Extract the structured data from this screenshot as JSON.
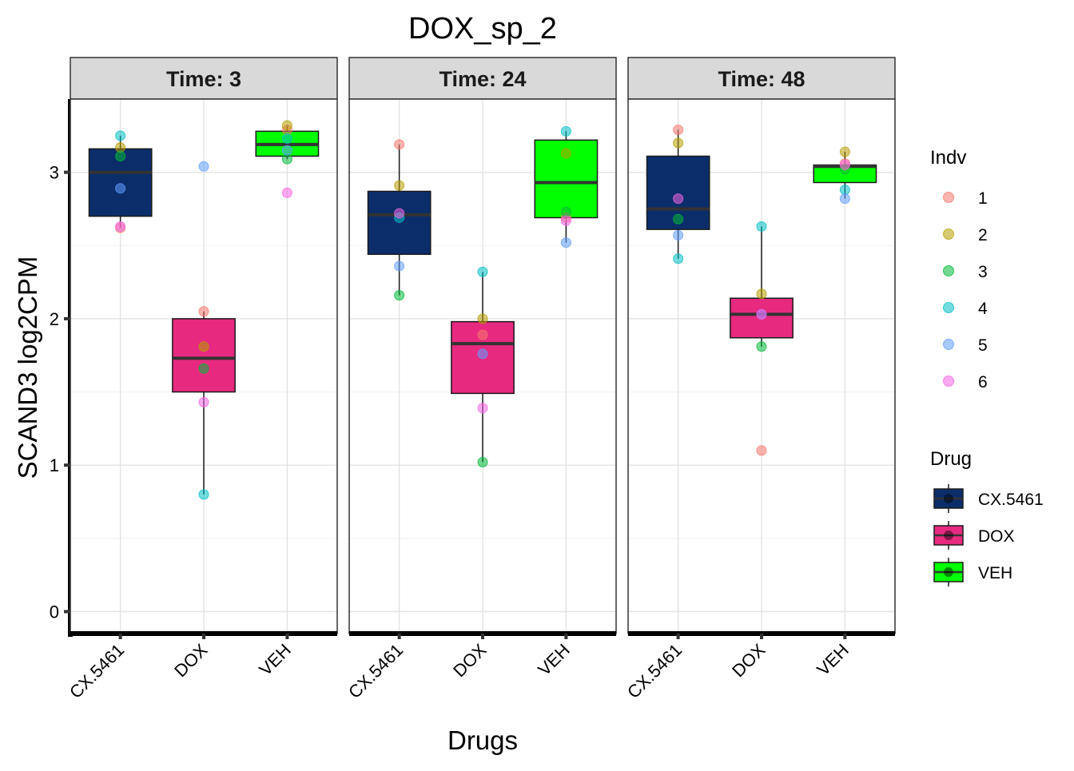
{
  "chart_data": {
    "type": "box",
    "title": "DOX_sp_2",
    "xlabel": "Drugs",
    "ylabel": "SCAND3  log2CPM",
    "ylim": [
      -0.15,
      3.5
    ],
    "yticks": [
      0,
      1,
      2,
      3
    ],
    "categories": [
      "CX.5461",
      "DOX",
      "VEH"
    ],
    "drug_colors": {
      "CX.5461": "#0B2E6B",
      "DOX": "#E72A80",
      "VEH": "#00FF00"
    },
    "indv_colors": {
      "1": "#F8766D",
      "2": "#B79F00",
      "3": "#00BA38",
      "4": "#00BFC4",
      "5": "#619CFF",
      "6": "#F564E3"
    },
    "legend_indv": {
      "title": "Indv",
      "entries": [
        "1",
        "2",
        "3",
        "4",
        "5",
        "6"
      ]
    },
    "legend_drug": {
      "title": "Drug",
      "entries": [
        "CX.5461",
        "DOX",
        "VEH"
      ]
    },
    "panels": [
      {
        "label": "Time: 3",
        "boxes": [
          {
            "drug": "CX.5461",
            "min": 2.62,
            "q1": 2.7,
            "median": 3.0,
            "q3": 3.16,
            "max": 3.25,
            "points": [
              {
                "indv": "1",
                "y": 2.62
              },
              {
                "indv": "2",
                "y": 3.17
              },
              {
                "indv": "3",
                "y": 3.11
              },
              {
                "indv": "4",
                "y": 3.25
              },
              {
                "indv": "5",
                "y": 2.89
              },
              {
                "indv": "6",
                "y": 2.63
              }
            ]
          },
          {
            "drug": "DOX",
            "min": 0.8,
            "q1": 1.5,
            "median": 1.73,
            "q3": 2.0,
            "max": 2.05,
            "points": [
              {
                "indv": "1",
                "y": 2.05
              },
              {
                "indv": "2",
                "y": 1.81
              },
              {
                "indv": "3",
                "y": 1.66
              },
              {
                "indv": "4",
                "y": 0.8
              },
              {
                "indv": "5",
                "y": 3.04
              },
              {
                "indv": "6",
                "y": 1.43
              }
            ]
          },
          {
            "drug": "VEH",
            "min": 3.09,
            "q1": 3.11,
            "median": 3.19,
            "q3": 3.28,
            "max": 3.32,
            "points": [
              {
                "indv": "1",
                "y": 3.29
              },
              {
                "indv": "2",
                "y": 3.32
              },
              {
                "indv": "3",
                "y": 3.09
              },
              {
                "indv": "4",
                "y": 3.23
              },
              {
                "indv": "5",
                "y": 3.15
              },
              {
                "indv": "6",
                "y": 2.86
              }
            ]
          }
        ]
      },
      {
        "label": "Time: 24",
        "boxes": [
          {
            "drug": "CX.5461",
            "min": 2.16,
            "q1": 2.44,
            "median": 2.71,
            "q3": 2.87,
            "max": 3.19,
            "points": [
              {
                "indv": "1",
                "y": 3.19
              },
              {
                "indv": "2",
                "y": 2.91
              },
              {
                "indv": "3",
                "y": 2.16
              },
              {
                "indv": "4",
                "y": 2.69
              },
              {
                "indv": "5",
                "y": 2.36
              },
              {
                "indv": "6",
                "y": 2.72
              }
            ]
          },
          {
            "drug": "DOX",
            "min": 1.02,
            "q1": 1.49,
            "median": 1.83,
            "q3": 1.98,
            "max": 2.32,
            "points": [
              {
                "indv": "1",
                "y": 1.89
              },
              {
                "indv": "2",
                "y": 2.0
              },
              {
                "indv": "3",
                "y": 1.02
              },
              {
                "indv": "4",
                "y": 2.32
              },
              {
                "indv": "5",
                "y": 1.76
              },
              {
                "indv": "6",
                "y": 1.39
              }
            ]
          },
          {
            "drug": "VEH",
            "min": 2.52,
            "q1": 2.69,
            "median": 2.93,
            "q3": 3.22,
            "max": 3.28,
            "points": [
              {
                "indv": "1",
                "y": 2.69
              },
              {
                "indv": "2",
                "y": 3.13
              },
              {
                "indv": "3",
                "y": 2.73
              },
              {
                "indv": "4",
                "y": 3.28
              },
              {
                "indv": "5",
                "y": 2.52
              },
              {
                "indv": "6",
                "y": 2.67
              }
            ]
          }
        ]
      },
      {
        "label": "Time: 48",
        "boxes": [
          {
            "drug": "CX.5461",
            "min": 2.41,
            "q1": 2.61,
            "median": 2.75,
            "q3": 3.11,
            "max": 3.29,
            "points": [
              {
                "indv": "1",
                "y": 3.29
              },
              {
                "indv": "2",
                "y": 3.2
              },
              {
                "indv": "3",
                "y": 2.68
              },
              {
                "indv": "4",
                "y": 2.41
              },
              {
                "indv": "5",
                "y": 2.57
              },
              {
                "indv": "6",
                "y": 2.82
              }
            ]
          },
          {
            "drug": "DOX",
            "min": 1.81,
            "q1": 1.87,
            "median": 2.03,
            "q3": 2.14,
            "max": 2.63,
            "points": [
              {
                "indv": "1",
                "y": 1.1
              },
              {
                "indv": "2",
                "y": 2.17
              },
              {
                "indv": "3",
                "y": 1.81
              },
              {
                "indv": "4",
                "y": 2.63
              },
              {
                "indv": "5",
                "y": 2.03
              },
              {
                "indv": "6",
                "y": 2.03
              }
            ]
          },
          {
            "drug": "VEH",
            "min": 2.82,
            "q1": 2.93,
            "median": 3.04,
            "q3": 3.05,
            "max": 3.14,
            "points": [
              {
                "indv": "1",
                "y": 3.06
              },
              {
                "indv": "2",
                "y": 3.14
              },
              {
                "indv": "3",
                "y": 3.02
              },
              {
                "indv": "4",
                "y": 2.88
              },
              {
                "indv": "5",
                "y": 2.82
              },
              {
                "indv": "6",
                "y": 3.05
              }
            ]
          }
        ]
      }
    ]
  }
}
